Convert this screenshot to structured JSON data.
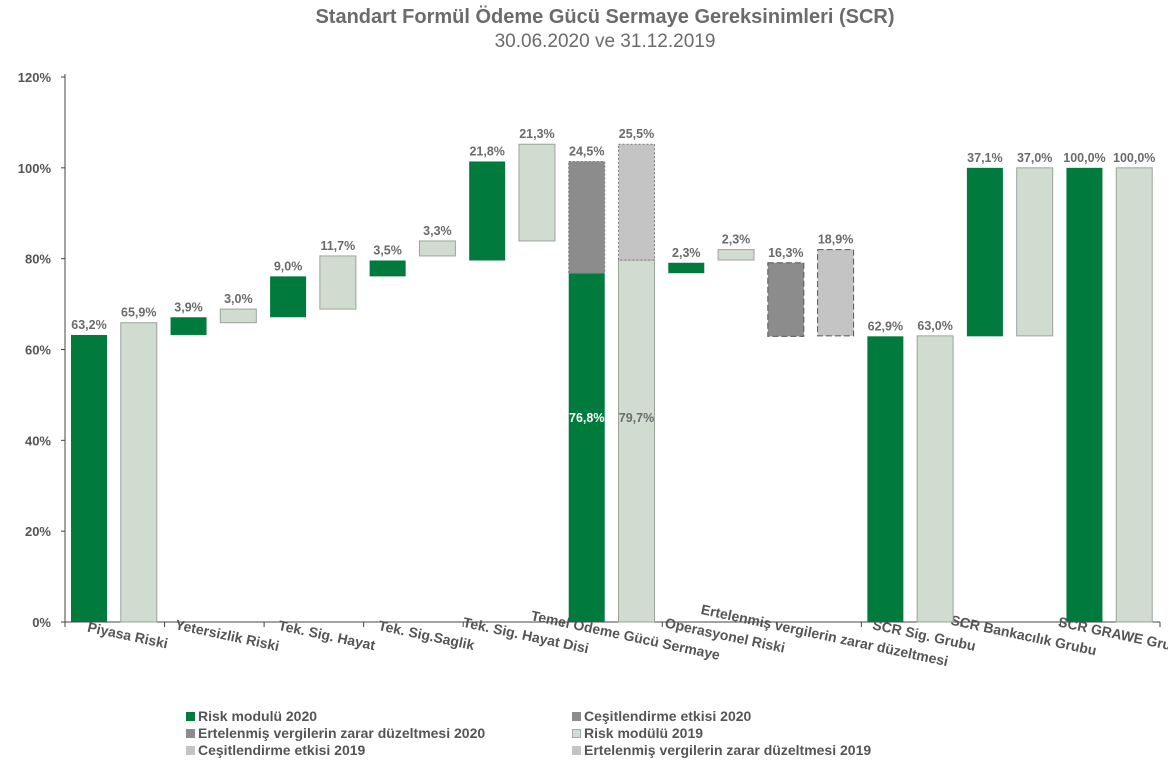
{
  "title": "Standart Formül Ödeme Gücü Sermaye Gereksinimleri (SCR)",
  "subtitle": "30.06.2020 ve 31.12.2019",
  "colors": {
    "risk_2020": "#007a3d",
    "risk_2019": "#d0dccf",
    "diversification_2020": "#8c8c8c",
    "diversification_2019": "#c4c4c4",
    "deferred_2020": "#8c8c8c",
    "deferred_2019": "#c4c4c4"
  },
  "chart_data": {
    "type": "bar",
    "subtype": "waterfall",
    "ylim": [
      0,
      120
    ],
    "yticks": [
      "0%",
      "20%",
      "40%",
      "60%",
      "80%",
      "100%",
      "120%"
    ],
    "categories": [
      "Piyasa Riski",
      "Yetersizlik Riski",
      "Tek. Sig. Hayat",
      "Tek. Sig.Saglik",
      "Tek. Sig. Hayat Disi",
      "Temel Ödeme Gücü Sermaye",
      "Operasyonel Riski",
      "Ertelenmiş vergilerin zarar düzeltmesi",
      "SCR Sig. Grubu",
      "SCR Bankacılık Grubu",
      "SCR GRAWE Grubu"
    ],
    "legend": [
      "Risk modulü 2020",
      "Ceşitlendirme etkisi 2020",
      "Ertelenmiş vergilerin zarar düzeltmesi 2020",
      "Risk modülü 2019",
      "Ceşitlendirme etkisi 2019",
      "Ertelenmiş vergilerin zarar düzeltmesi 2019"
    ],
    "bars": [
      {
        "cat": 0,
        "series": "Risk modulü 2020",
        "bottom": 0,
        "top": 63.2,
        "label": "63,2%"
      },
      {
        "cat": 0,
        "series": "Risk modülü 2019",
        "bottom": 0,
        "top": 65.9,
        "label": "65,9%"
      },
      {
        "cat": 1,
        "series": "Risk modulü 2020",
        "bottom": 63.2,
        "top": 67.1,
        "label": "3,9%"
      },
      {
        "cat": 1,
        "series": "Risk modülü 2019",
        "bottom": 65.9,
        "top": 68.9,
        "label": "3,0%"
      },
      {
        "cat": 2,
        "series": "Risk modulü 2020",
        "bottom": 67.1,
        "top": 76.1,
        "label": "9,0%"
      },
      {
        "cat": 2,
        "series": "Risk modülü 2019",
        "bottom": 68.9,
        "top": 80.6,
        "label": "11,7%"
      },
      {
        "cat": 3,
        "series": "Risk modulü 2020",
        "bottom": 76.1,
        "top": 79.6,
        "label": "3,5%"
      },
      {
        "cat": 3,
        "series": "Risk modülü 2019",
        "bottom": 80.6,
        "top": 83.9,
        "label": "3,3%"
      },
      {
        "cat": 4,
        "series": "Risk modulü 2020",
        "bottom": 79.6,
        "top": 101.4,
        "label": "21,8%"
      },
      {
        "cat": 4,
        "series": "Risk modülü 2019",
        "bottom": 83.9,
        "top": 105.2,
        "label": "21,3%"
      },
      {
        "cat": 5,
        "series": "Risk modulü 2020",
        "bottom": 0,
        "top": 76.8,
        "label": "76,8%"
      },
      {
        "cat": 5,
        "series": "Ceşitlendirme etkisi 2020",
        "bottom": 76.8,
        "top": 101.4,
        "label": "24,5%"
      },
      {
        "cat": 5,
        "series": "Risk modülü 2019",
        "bottom": 0,
        "top": 79.7,
        "label": "79,7%"
      },
      {
        "cat": 5,
        "series": "Ceşitlendirme etkisi 2019",
        "bottom": 79.7,
        "top": 105.2,
        "label": "25,5%"
      },
      {
        "cat": 6,
        "series": "Risk modulü 2020",
        "bottom": 76.8,
        "top": 79.1,
        "label": "2,3%"
      },
      {
        "cat": 6,
        "series": "Risk modülü 2019",
        "bottom": 79.7,
        "top": 82.0,
        "label": "2,3%"
      },
      {
        "cat": 7,
        "series": "Ertelenmiş vergilerin zarar düzeltmesi 2020",
        "bottom": 62.9,
        "top": 79.1,
        "label": "16,3%"
      },
      {
        "cat": 7,
        "series": "Ertelenmiş vergilerin zarar düzeltmesi 2019",
        "bottom": 63.0,
        "top": 82.0,
        "label": "18,9%"
      },
      {
        "cat": 8,
        "series": "Risk modulü 2020",
        "bottom": 0,
        "top": 62.9,
        "label": "62,9%"
      },
      {
        "cat": 8,
        "series": "Risk modülü 2019",
        "bottom": 0,
        "top": 63.0,
        "label": "63,0%"
      },
      {
        "cat": 9,
        "series": "Risk modulü 2020",
        "bottom": 62.9,
        "top": 100,
        "label": "37,1%"
      },
      {
        "cat": 9,
        "series": "Risk modülü 2019",
        "bottom": 63.0,
        "top": 100,
        "label": "37,0%"
      },
      {
        "cat": 10,
        "series": "Risk modulü 2020",
        "bottom": 0,
        "top": 100,
        "label": "100,0%"
      },
      {
        "cat": 10,
        "series": "Risk modülü 2019",
        "bottom": 0,
        "top": 100,
        "label": "100,0%"
      }
    ]
  }
}
